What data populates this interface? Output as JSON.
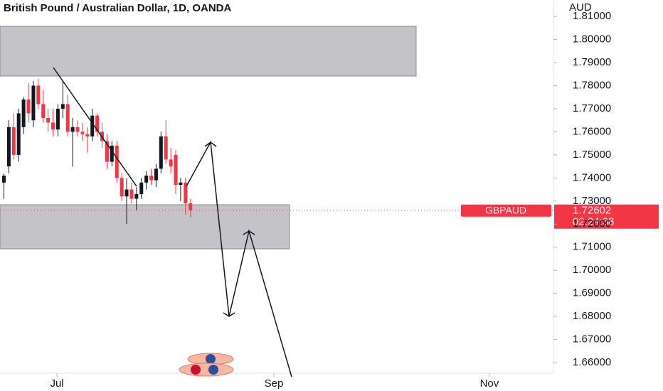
{
  "chart_data": {
    "type": "candlestick",
    "title": "British Pound / Australian Dollar, 1D, OANDA",
    "y_axis_label": "AUD",
    "up_color": "#131722",
    "down_color": "#f23645",
    "open": [
      1.738,
      1.745,
      1.762,
      1.75,
      1.762,
      1.774,
      1.765,
      1.78,
      1.772,
      1.766,
      1.764,
      1.761,
      1.77,
      1.772,
      1.76,
      1.762,
      1.76,
      1.759,
      1.758,
      1.767,
      1.76,
      1.756,
      1.747,
      1.754,
      1.74,
      1.732,
      1.735,
      1.731,
      1.733,
      1.738,
      1.741,
      1.739,
      1.744,
      1.758,
      1.748,
      1.75,
      1.737,
      1.738,
      1.729
    ],
    "high": [
      1.742,
      1.765,
      1.768,
      1.77,
      1.775,
      1.781,
      1.782,
      1.783,
      1.778,
      1.77,
      1.77,
      1.772,
      1.782,
      1.776,
      1.766,
      1.765,
      1.764,
      1.762,
      1.77,
      1.768,
      1.764,
      1.759,
      1.756,
      1.756,
      1.742,
      1.74,
      1.738,
      1.736,
      1.74,
      1.743,
      1.744,
      1.746,
      1.76,
      1.765,
      1.753,
      1.752,
      1.74,
      1.74,
      1.731
    ],
    "low": [
      1.731,
      1.742,
      1.748,
      1.747,
      1.759,
      1.764,
      1.762,
      1.77,
      1.764,
      1.76,
      1.758,
      1.758,
      1.766,
      1.758,
      1.745,
      1.758,
      1.756,
      1.751,
      1.756,
      1.758,
      1.753,
      1.744,
      1.745,
      1.738,
      1.73,
      1.72,
      1.729,
      1.726,
      1.731,
      1.735,
      1.737,
      1.736,
      1.742,
      1.746,
      1.742,
      1.733,
      1.73,
      1.724,
      1.723
    ],
    "close": [
      1.741,
      1.762,
      1.75,
      1.768,
      1.774,
      1.768,
      1.78,
      1.772,
      1.766,
      1.764,
      1.761,
      1.77,
      1.772,
      1.76,
      1.762,
      1.76,
      1.759,
      1.758,
      1.767,
      1.76,
      1.756,
      1.747,
      1.754,
      1.74,
      1.732,
      1.735,
      1.731,
      1.733,
      1.738,
      1.741,
      1.739,
      1.744,
      1.758,
      1.748,
      1.745,
      1.737,
      1.738,
      1.729,
      1.72602
    ],
    "xlim": [
      -0.8,
      111.95
    ],
    "xticks": [
      {
        "value": 10.8,
        "label": "Jul"
      },
      {
        "value": 55.0,
        "label": "Sep"
      },
      {
        "value": 98.9,
        "label": "Nov"
      }
    ],
    "ylim": [
      1.6554,
      1.8171
    ],
    "yticks": [
      {
        "value": 1.66,
        "label": "1.66000"
      },
      {
        "value": 1.67,
        "label": "1.67000"
      },
      {
        "value": 1.68,
        "label": "1.68000"
      },
      {
        "value": 1.69,
        "label": "1.69000"
      },
      {
        "value": 1.7,
        "label": "1.70000"
      },
      {
        "value": 1.71,
        "label": "1.71000"
      },
      {
        "value": 1.72,
        "label": "1.72000"
      },
      {
        "value": 1.73,
        "label": "1.73000"
      },
      {
        "value": 1.74,
        "label": "1.74000"
      },
      {
        "value": 1.75,
        "label": "1.75000"
      },
      {
        "value": 1.76,
        "label": "1.76000"
      },
      {
        "value": 1.77,
        "label": "1.77000"
      },
      {
        "value": 1.78,
        "label": "1.78000"
      },
      {
        "value": 1.79,
        "label": "1.79000"
      },
      {
        "value": 1.8,
        "label": "1.80000"
      },
      {
        "value": 1.81,
        "label": "1.81000"
      }
    ],
    "symbol": "GBPAUD",
    "current_price": 1.72602,
    "countdown": "02:24:38"
  }
}
